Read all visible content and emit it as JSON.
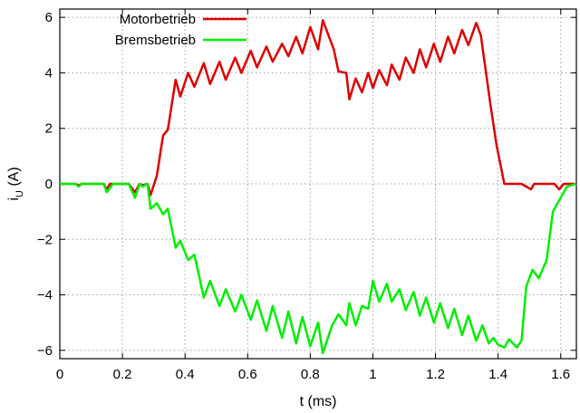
{
  "chart_data": {
    "type": "line",
    "title": "",
    "xlabel": "t (ms)",
    "ylabel": "iU (A)",
    "ylabel_main": "i",
    "ylabel_sub": "U",
    "ylabel_rest": " (A)",
    "xlim": [
      0,
      1.65
    ],
    "ylim": [
      -6.3,
      6.3
    ],
    "grid": true,
    "legend_position": "top-left",
    "xticks": [
      0,
      0.2,
      0.4,
      0.6,
      0.8,
      1,
      1.2,
      1.4,
      1.6
    ],
    "xtick_labels": [
      "0",
      "0.2",
      "0.4",
      "0.6",
      "0.8",
      "1",
      "1.2",
      "1.4",
      "1.6"
    ],
    "yticks": [
      -6,
      -4,
      -2,
      0,
      2,
      4,
      6
    ],
    "ytick_labels": [
      "−6",
      "−4",
      "−2",
      "0",
      "2",
      "4",
      "6"
    ],
    "series": [
      {
        "name": "Motorbetrieb",
        "color": "#dd0000",
        "x": [
          0,
          0.05,
          0.06,
          0.07,
          0.14,
          0.15,
          0.16,
          0.22,
          0.24,
          0.255,
          0.265,
          0.28,
          0.29,
          0.31,
          0.33,
          0.345,
          0.37,
          0.385,
          0.41,
          0.43,
          0.46,
          0.48,
          0.51,
          0.53,
          0.56,
          0.58,
          0.61,
          0.63,
          0.66,
          0.68,
          0.71,
          0.73,
          0.755,
          0.775,
          0.8,
          0.825,
          0.84,
          0.875,
          0.89,
          0.915,
          0.925,
          0.945,
          0.965,
          0.985,
          1.0,
          1.02,
          1.045,
          1.06,
          1.085,
          1.105,
          1.13,
          1.15,
          1.17,
          1.195,
          1.215,
          1.24,
          1.26,
          1.285,
          1.305,
          1.33,
          1.345,
          1.375,
          1.395,
          1.42,
          1.445,
          1.475,
          1.505,
          1.515,
          1.525,
          1.55,
          1.58,
          1.595,
          1.61,
          1.635,
          1.65
        ],
        "y": [
          0,
          0,
          -0.05,
          0,
          0,
          -0.2,
          0,
          0,
          -0.3,
          0,
          -0.05,
          0,
          -0.4,
          0.3,
          1.75,
          1.95,
          3.75,
          3.15,
          4.0,
          3.5,
          4.35,
          3.6,
          4.4,
          3.75,
          4.55,
          4.0,
          4.8,
          4.2,
          4.95,
          4.4,
          5.05,
          4.6,
          5.3,
          4.7,
          5.65,
          4.85,
          5.9,
          4.85,
          4.05,
          4.0,
          3.05,
          3.8,
          3.3,
          4.0,
          3.45,
          4.1,
          3.55,
          4.3,
          3.75,
          4.55,
          4.0,
          4.85,
          4.2,
          5.05,
          4.4,
          5.3,
          4.7,
          5.55,
          5.0,
          5.8,
          5.35,
          2.9,
          1.4,
          0,
          0,
          0,
          -0.2,
          0,
          0,
          0,
          0,
          -0.2,
          0,
          0,
          0
        ]
      },
      {
        "name": "Bremsbetrieb",
        "color": "#00ee00",
        "x": [
          0,
          0.05,
          0.06,
          0.07,
          0.14,
          0.15,
          0.17,
          0.22,
          0.24,
          0.255,
          0.265,
          0.28,
          0.29,
          0.31,
          0.33,
          0.345,
          0.37,
          0.385,
          0.41,
          0.43,
          0.46,
          0.48,
          0.51,
          0.53,
          0.56,
          0.58,
          0.61,
          0.63,
          0.66,
          0.68,
          0.71,
          0.73,
          0.755,
          0.775,
          0.8,
          0.825,
          0.84,
          0.87,
          0.89,
          0.915,
          0.925,
          0.945,
          0.965,
          0.985,
          1.0,
          1.02,
          1.045,
          1.06,
          1.085,
          1.105,
          1.13,
          1.15,
          1.17,
          1.195,
          1.215,
          1.24,
          1.26,
          1.285,
          1.305,
          1.33,
          1.35,
          1.37,
          1.385,
          1.4,
          1.42,
          1.435,
          1.46,
          1.475,
          1.49,
          1.51,
          1.53,
          1.555,
          1.575,
          1.6,
          1.62,
          1.65
        ],
        "y": [
          0,
          0,
          -0.1,
          0,
          0,
          -0.3,
          0,
          0,
          -0.5,
          0,
          -0.1,
          0,
          -0.9,
          -0.7,
          -1.1,
          -0.9,
          -2.3,
          -2.05,
          -2.75,
          -2.55,
          -4.1,
          -3.5,
          -4.4,
          -3.8,
          -4.6,
          -4.0,
          -4.9,
          -4.2,
          -5.3,
          -4.4,
          -5.55,
          -4.6,
          -5.75,
          -4.8,
          -5.85,
          -5.0,
          -6.1,
          -5.1,
          -4.7,
          -5.1,
          -4.3,
          -5.1,
          -4.4,
          -4.5,
          -3.5,
          -4.25,
          -3.6,
          -4.25,
          -3.8,
          -4.55,
          -3.9,
          -4.75,
          -4.1,
          -5.0,
          -4.3,
          -5.2,
          -4.5,
          -5.45,
          -4.75,
          -5.65,
          -5.1,
          -5.75,
          -5.55,
          -5.8,
          -5.9,
          -5.6,
          -5.9,
          -5.65,
          -3.7,
          -3.1,
          -3.4,
          -2.75,
          -1.0,
          -0.5,
          -0.1,
          0
        ]
      }
    ]
  }
}
